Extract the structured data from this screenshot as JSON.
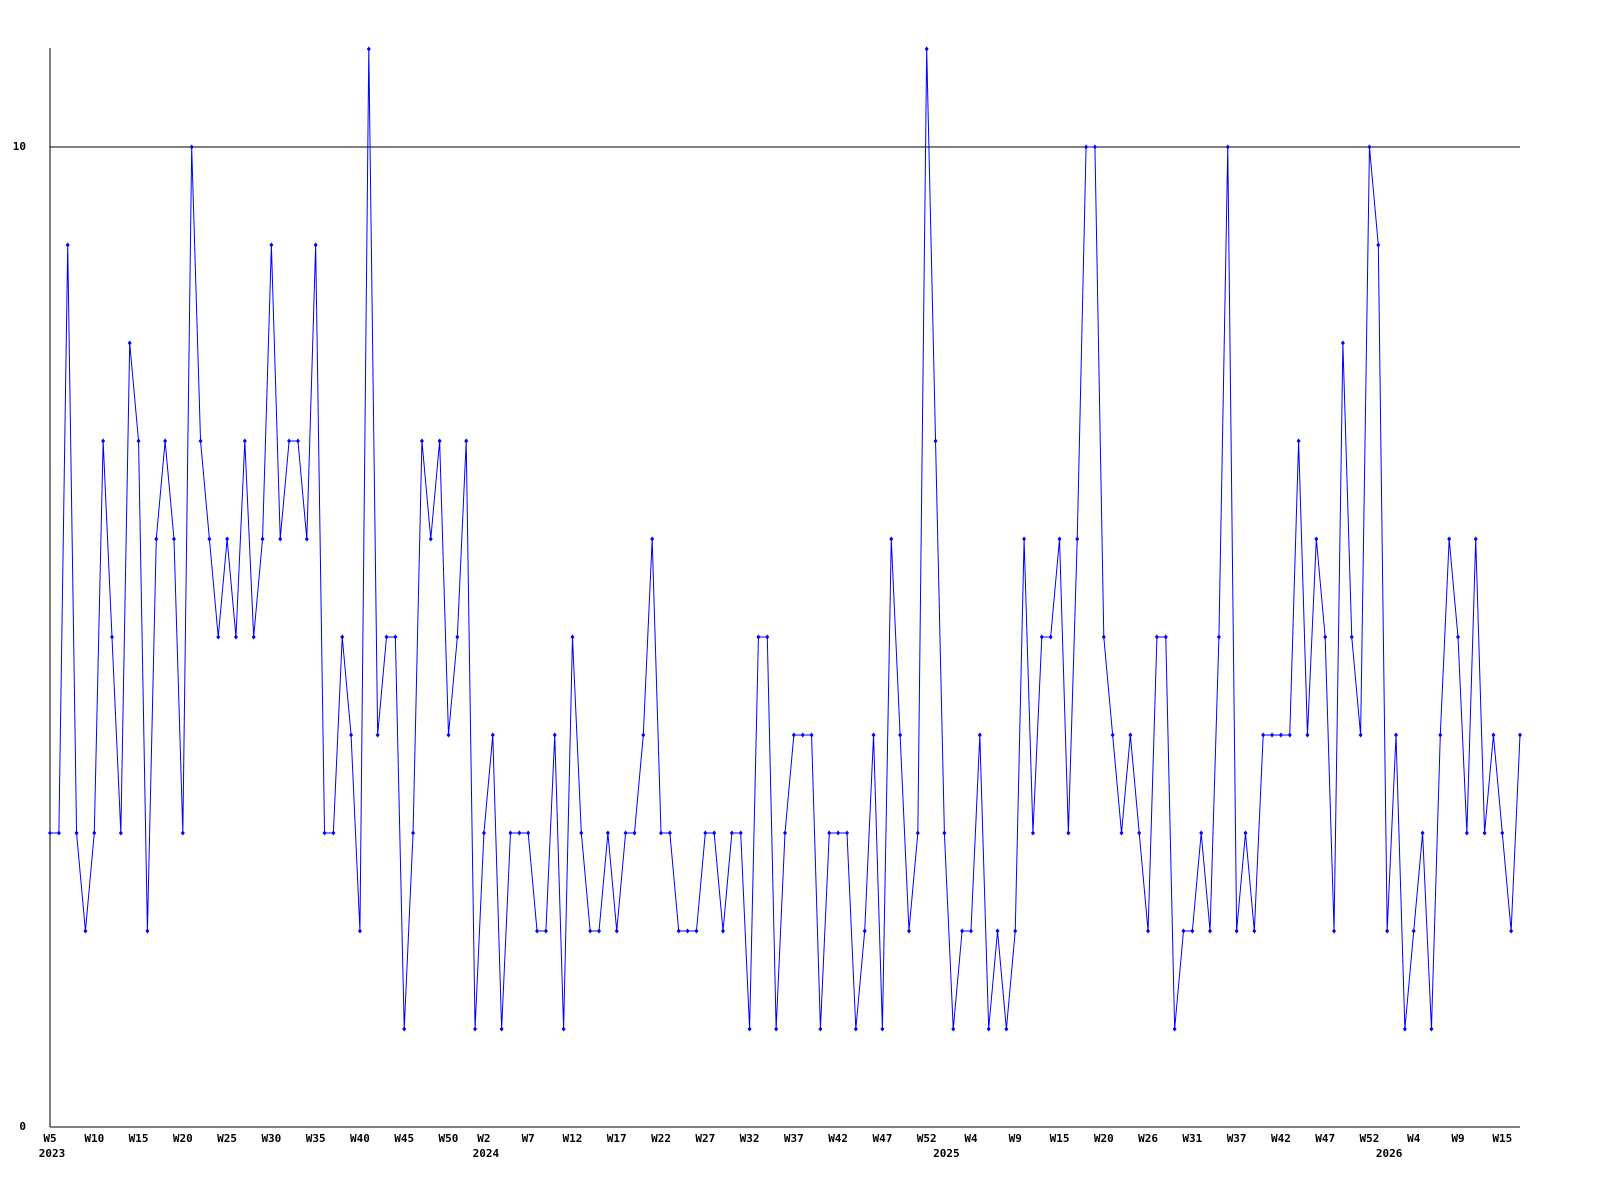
{
  "chart_data": {
    "type": "line",
    "categories": [
      "W5",
      null,
      null,
      null,
      null,
      "W10",
      null,
      null,
      null,
      null,
      "W15",
      null,
      null,
      null,
      null,
      "W20",
      null,
      null,
      null,
      null,
      "W25",
      null,
      null,
      null,
      null,
      "W30",
      null,
      null,
      null,
      null,
      "W35",
      null,
      null,
      null,
      null,
      "W40",
      null,
      null,
      null,
      null,
      "W45",
      null,
      null,
      null,
      null,
      "W50",
      null,
      null,
      null,
      "W2",
      null,
      null,
      null,
      null,
      "W7",
      null,
      null,
      null,
      null,
      "W12",
      null,
      null,
      null,
      null,
      "W17",
      null,
      null,
      null,
      null,
      "W22",
      null,
      null,
      null,
      null,
      "W27",
      null,
      null,
      null,
      null,
      "W32",
      null,
      null,
      null,
      null,
      "W37",
      null,
      null,
      null,
      null,
      "W42",
      null,
      null,
      null,
      null,
      "W47",
      null,
      null,
      null,
      null,
      "W52",
      null,
      null,
      null,
      null,
      "W4",
      null,
      null,
      null,
      null,
      "W9",
      null,
      null,
      null,
      null,
      "W15",
      null,
      null,
      null,
      null,
      "W20",
      null,
      null,
      null,
      null,
      "W26",
      null,
      null,
      null,
      null,
      "W31",
      null,
      null,
      null,
      null,
      "W37",
      null,
      null,
      null,
      null,
      "W42",
      null,
      null,
      null,
      null,
      "W47",
      null,
      null,
      null,
      null,
      "W52",
      null,
      null,
      null,
      null,
      "W4",
      null,
      null,
      null,
      null,
      "W9",
      null,
      null,
      null,
      null,
      "W15",
      null,
      null
    ],
    "years": [
      "2023",
      null,
      null,
      null,
      null,
      null,
      null,
      null,
      null,
      null,
      null,
      null,
      null,
      null,
      null,
      null,
      null,
      null,
      null,
      null,
      null,
      null,
      null,
      null,
      null,
      null,
      null,
      null,
      null,
      null,
      null,
      null,
      null,
      null,
      null,
      null,
      null,
      null,
      null,
      null,
      null,
      null,
      null,
      null,
      null,
      null,
      null,
      null,
      null,
      "2024",
      null,
      null,
      null,
      null,
      null,
      null,
      null,
      null,
      null,
      null,
      null,
      null,
      null,
      null,
      null,
      null,
      null,
      null,
      null,
      null,
      null,
      null,
      null,
      null,
      null,
      null,
      null,
      null,
      null,
      null,
      null,
      null,
      null,
      null,
      null,
      null,
      null,
      null,
      null,
      null,
      null,
      null,
      null,
      null,
      null,
      null,
      null,
      null,
      null,
      null,
      null,
      "2025",
      null,
      null,
      null,
      null,
      null,
      null,
      null,
      null,
      null,
      null,
      null,
      null,
      null,
      null,
      null,
      null,
      null,
      null,
      null,
      null,
      null,
      null,
      null,
      null,
      null,
      null,
      null,
      null,
      null,
      null,
      null,
      null,
      null,
      null,
      null,
      null,
      null,
      null,
      null,
      null,
      null,
      null,
      null,
      null,
      null,
      null,
      null,
      null,
      null,
      "2026",
      null,
      null,
      null,
      null,
      null,
      null,
      null,
      null,
      null,
      null,
      null,
      null,
      null,
      null,
      null
    ],
    "series": [
      {
        "color": "#0000ff",
        "values": [
          3,
          3,
          9,
          3,
          2,
          3,
          7,
          5,
          3,
          8,
          7,
          2,
          6,
          7,
          6,
          3,
          10,
          7,
          6,
          5,
          6,
          5,
          7,
          5,
          6,
          9,
          6,
          7,
          7,
          6,
          9,
          3,
          3,
          5,
          4,
          2,
          11,
          4,
          5,
          5,
          1,
          3,
          7,
          6,
          7,
          4,
          5,
          7,
          1,
          3,
          4,
          1,
          3,
          3,
          3,
          2,
          2,
          4,
          1,
          5,
          3,
          2,
          2,
          3,
          2,
          3,
          3,
          4,
          6,
          3,
          3,
          2,
          2,
          2,
          3,
          3,
          2,
          3,
          3,
          1,
          5,
          5,
          1,
          3,
          4,
          4,
          4,
          1,
          3,
          3,
          3,
          1,
          2,
          4,
          1,
          6,
          4,
          2,
          3,
          11,
          7,
          3,
          1,
          2,
          2,
          4,
          1,
          2,
          1,
          2,
          6,
          3,
          5,
          5,
          6,
          3,
          6,
          10,
          10,
          5,
          4,
          3,
          4,
          3,
          2,
          5,
          5,
          1,
          2,
          2,
          3,
          2,
          5,
          10,
          2,
          3,
          2,
          4,
          4,
          4,
          4,
          7,
          4,
          6,
          5,
          2,
          8,
          5,
          4,
          10,
          9,
          2,
          4,
          1,
          2,
          3,
          1,
          4,
          6,
          5,
          3,
          6,
          3,
          4,
          3,
          2,
          4
        ]
      }
    ],
    "ylim": [
      0,
      11
    ],
    "yticks": [
      0,
      10
    ],
    "grid": true
  }
}
